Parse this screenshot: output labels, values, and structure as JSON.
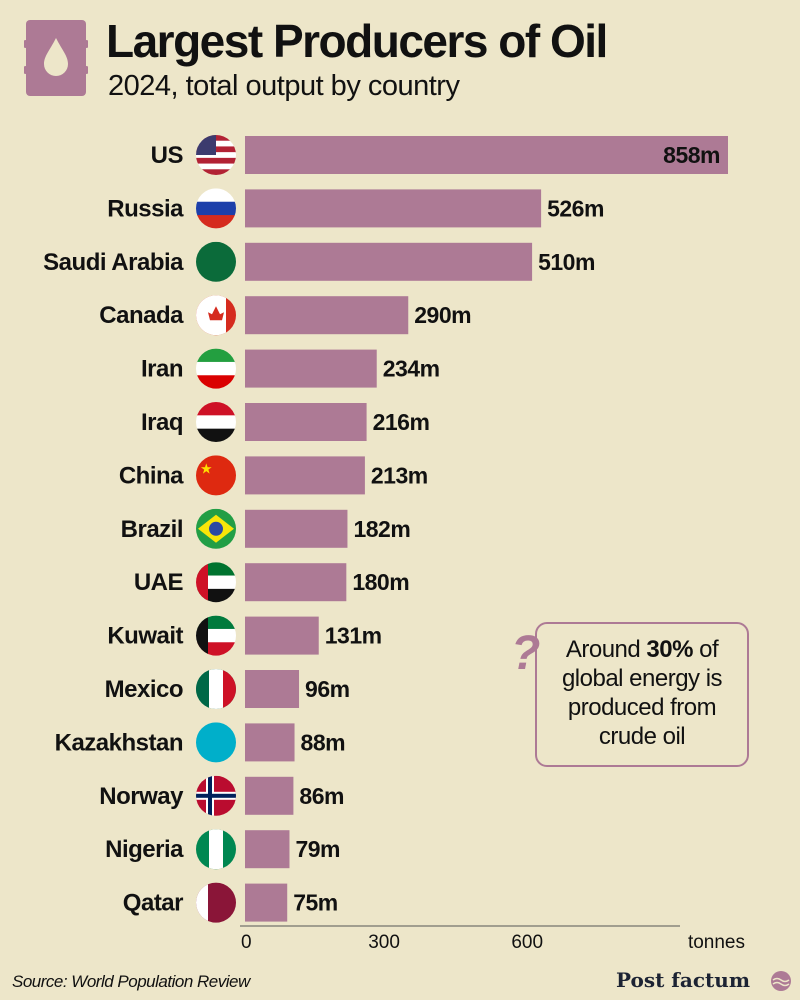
{
  "title": "Largest Producers of Oil",
  "subtitle": "2024, total output by country",
  "icon": "oil-barrel-icon",
  "colors": {
    "background": "#EDE6C9",
    "bar": "#AD7A95",
    "text": "#111111"
  },
  "chart_data": {
    "type": "bar",
    "orientation": "horizontal",
    "title": "Largest Producers of Oil",
    "subtitle": "2024, total output by country",
    "categories": [
      "US",
      "Russia",
      "Saudi Arabia",
      "Canada",
      "Iran",
      "Iraq",
      "China",
      "Brazil",
      "UAE",
      "Kuwait",
      "Mexico",
      "Kazakhstan",
      "Norway",
      "Nigeria",
      "Qatar"
    ],
    "values": [
      858,
      526,
      510,
      290,
      234,
      216,
      213,
      182,
      180,
      131,
      96,
      88,
      86,
      79,
      75
    ],
    "data_labels": [
      "858m",
      "526m",
      "510m",
      "290m",
      "234m",
      "216m",
      "213m",
      "182m",
      "180m",
      "131m",
      "96m",
      "88m",
      "86m",
      "79m",
      "75m"
    ],
    "xlabel": "tonnes",
    "xticks": [
      "0",
      "300",
      "600"
    ],
    "tick_values": [
      0,
      300,
      600
    ],
    "grid": false
  },
  "callout": {
    "pre": "Around ",
    "bold": "30%",
    "post": " of global energy is produced from crude oil",
    "icon": "question-mark-icon"
  },
  "source": "Source: World Population Review",
  "brand": "Post factum"
}
